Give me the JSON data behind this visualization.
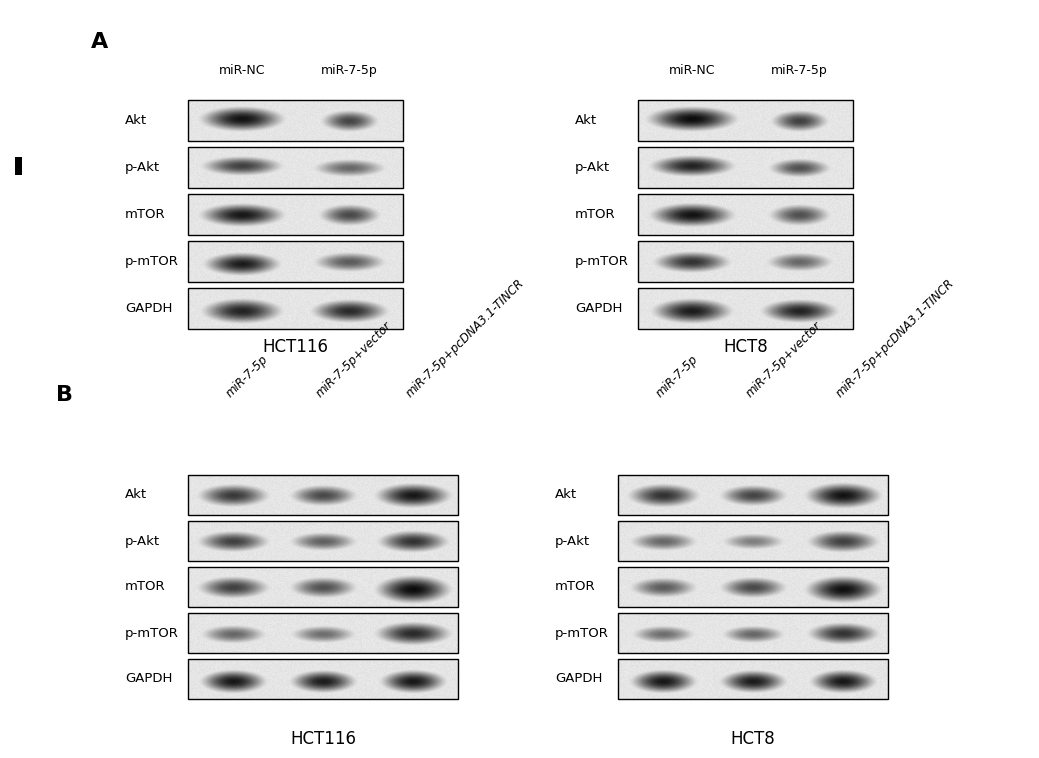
{
  "panel_A_label": "A",
  "panel_B_label": "B",
  "panel_A_left_title": "HCT116",
  "panel_A_right_title": "HCT8",
  "panel_B_left_title": "HCT116",
  "panel_B_right_title": "HCT8",
  "panel_A_col_labels": [
    "miR-NC",
    "miR-7-5p"
  ],
  "panel_B_col_labels": [
    "miR-7-5p",
    "miR-7-5p+vector",
    "miR-7-5p+pcDNA3.1-TINCR"
  ],
  "row_labels": [
    "Akt",
    "p-Akt",
    "mTOR",
    "p-mTOR",
    "GAPDH"
  ],
  "bg_color": "#ffffff"
}
